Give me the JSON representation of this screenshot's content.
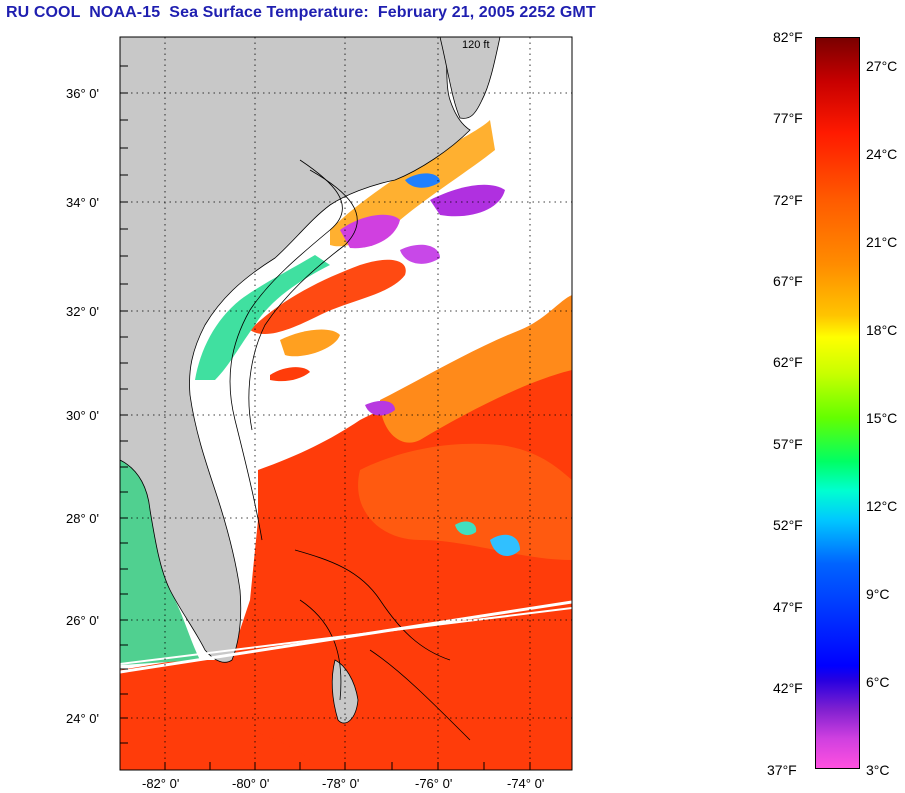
{
  "title": "RU COOL  NOAA-15  Sea Surface Temperature:  February 21, 2005 2252 GMT",
  "map": {
    "lat_labels": [
      "36° 0'",
      "34° 0'",
      "32° 0'",
      "30° 0'",
      "28° 0'",
      "26° 0'",
      "24° 0'"
    ],
    "lon_labels": [
      "-82° 0'",
      "-80° 0'",
      "-78° 0'",
      "-76° 0'",
      "-74° 0'"
    ],
    "contour_label": "120 ft",
    "colors": {
      "land": "#c8c8c8",
      "cloud": "#ffffff",
      "warm_sea": "#ff3c0a",
      "mid_sea": "#ff7a18",
      "cool_sea": "#1ec8ff",
      "cold_sea": "#d040e0"
    }
  },
  "colorbar": {
    "fahrenheit": [
      "82°F",
      "77°F",
      "72°F",
      "67°F",
      "62°F",
      "57°F",
      "52°F",
      "47°F",
      "42°F",
      "37°F"
    ],
    "celsius": [
      "27°C",
      "24°C",
      "21°C",
      "18°C",
      "15°C",
      "12°C",
      "9°C",
      "6°C",
      "3°C"
    ]
  }
}
